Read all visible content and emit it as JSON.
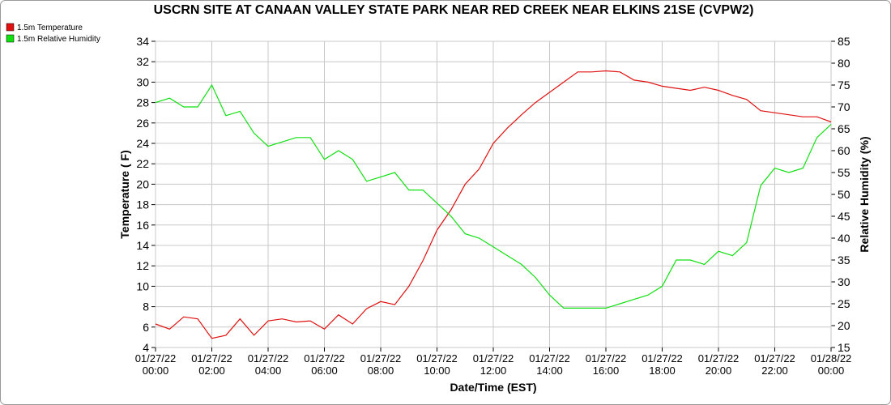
{
  "chart_data": {
    "type": "line",
    "title": "USCRN SITE AT CANAAN VALLEY STATE PARK NEAR RED CREEK NEAR ELKINS 21SE (CVPW2)",
    "x_label": "Date/Time (EST)",
    "y_label": "Temperature ( F)",
    "y2_label": "Relative Humidity (%)",
    "x": [
      "01/27/22 00:00",
      "01/27/22 00:30",
      "01/27/22 01:00",
      "01/27/22 01:30",
      "01/27/22 02:00",
      "01/27/22 02:30",
      "01/27/22 03:00",
      "01/27/22 03:30",
      "01/27/22 04:00",
      "01/27/22 04:30",
      "01/27/22 05:00",
      "01/27/22 05:30",
      "01/27/22 06:00",
      "01/27/22 06:30",
      "01/27/22 07:00",
      "01/27/22 07:30",
      "01/27/22 08:00",
      "01/27/22 08:30",
      "01/27/22 09:00",
      "01/27/22 09:30",
      "01/27/22 10:00",
      "01/27/22 10:30",
      "01/27/22 11:00",
      "01/27/22 11:30",
      "01/27/22 12:00",
      "01/27/22 12:30",
      "01/27/22 13:00",
      "01/27/22 13:30",
      "01/27/22 14:00",
      "01/27/22 14:30",
      "01/27/22 15:00",
      "01/27/22 15:30",
      "01/27/22 16:00",
      "01/27/22 16:30",
      "01/27/22 17:00",
      "01/27/22 17:30",
      "01/27/22 18:00",
      "01/27/22 18:30",
      "01/27/22 19:00",
      "01/27/22 19:30",
      "01/27/22 20:00",
      "01/27/22 20:30",
      "01/27/22 21:00",
      "01/27/22 21:30",
      "01/27/22 22:00",
      "01/27/22 22:30",
      "01/27/22 23:00",
      "01/27/22 23:30",
      "01/28/22 00:00"
    ],
    "series": [
      {
        "name": "1.5m Temperature",
        "color": "#e01010",
        "axis": "y",
        "values": [
          6.3,
          5.8,
          7.0,
          6.8,
          4.9,
          5.2,
          6.8,
          5.2,
          6.6,
          6.8,
          6.5,
          6.6,
          5.8,
          7.2,
          6.3,
          7.8,
          8.5,
          8.2,
          10.0,
          12.5,
          15.5,
          17.5,
          20.0,
          21.5,
          24.0,
          25.5,
          26.8,
          28.0,
          29.0,
          30.0,
          31.0,
          31.0,
          31.1,
          31.0,
          30.2,
          30.0,
          29.6,
          29.4,
          29.2,
          29.5,
          29.2,
          28.7,
          28.3,
          27.2,
          27.0,
          26.8,
          26.6,
          26.6,
          26.1
        ]
      },
      {
        "name": "1.5m Relative Humidity",
        "color": "#10e010",
        "axis": "y2",
        "values": [
          71,
          72,
          70,
          70,
          75,
          68,
          69,
          64,
          61,
          62,
          63,
          63,
          58,
          60,
          58,
          53,
          54,
          55,
          51,
          51,
          48,
          45,
          41,
          40,
          38,
          36,
          34,
          31,
          27,
          24,
          24,
          24,
          24,
          25,
          26,
          27,
          29,
          35,
          35,
          34,
          37,
          36,
          39,
          52,
          56,
          55,
          56,
          63,
          66
        ]
      }
    ],
    "xlim": [
      "01/27/22 00:00",
      "01/28/22 00:00"
    ],
    "xticks": [
      "01/27/22 00:00",
      "01/27/22 02:00",
      "01/27/22 04:00",
      "01/27/22 06:00",
      "01/27/22 08:00",
      "01/27/22 10:00",
      "01/27/22 12:00",
      "01/27/22 14:00",
      "01/27/22 16:00",
      "01/27/22 18:00",
      "01/27/22 20:00",
      "01/27/22 22:00",
      "01/28/22 00:00"
    ],
    "ylim": [
      4,
      34
    ],
    "yticks": [
      4,
      6,
      8,
      10,
      12,
      14,
      16,
      18,
      20,
      22,
      24,
      26,
      28,
      30,
      32,
      34
    ],
    "y2lim": [
      15,
      85
    ],
    "y2ticks": [
      15,
      20,
      25,
      30,
      35,
      40,
      45,
      50,
      55,
      60,
      65,
      70,
      75,
      80,
      85
    ],
    "grid": true,
    "legend": "upper left"
  }
}
